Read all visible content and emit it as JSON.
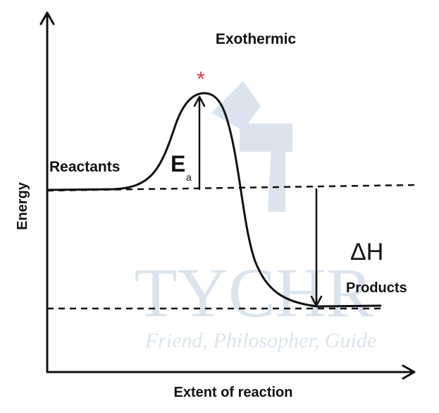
{
  "diagram": {
    "title": "Exothermic",
    "y_axis_label": "Energy",
    "x_axis_label": "Extent of reaction",
    "reactants_label": "Reactants",
    "products_label": "Products",
    "activation_energy_symbol": "E",
    "activation_energy_subscript": "a",
    "enthalpy_change_label": "ΔH",
    "transition_state_marker": "*"
  },
  "watermark": {
    "brand": "TYCHR",
    "tagline": "Friend, Philosopher, Guide"
  },
  "colors": {
    "curve": "#111111",
    "transition_state_marker": "#d23c3c",
    "watermark": "#dbe4ee"
  }
}
